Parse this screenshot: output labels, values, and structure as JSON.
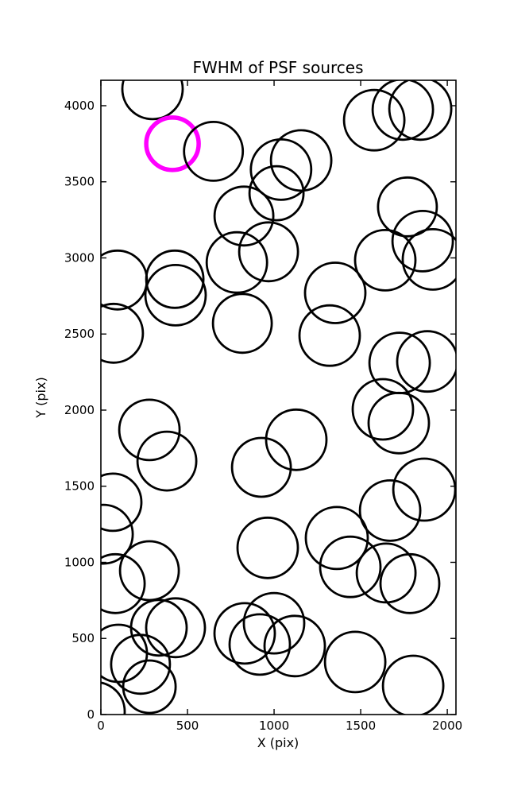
{
  "figure": {
    "background": "#ffffff"
  },
  "chart_data": {
    "type": "scatter",
    "title": "FWHM of PSF sources",
    "xlabel": "X (pix)",
    "ylabel": "Y (pix)",
    "xlim": [
      0,
      2050
    ],
    "ylim": [
      0,
      4167
    ],
    "xticks": [
      0,
      500,
      1000,
      1500,
      2000
    ],
    "yticks": [
      0,
      500,
      1000,
      1500,
      2000,
      2500,
      3000,
      3500,
      4000
    ],
    "grid": false,
    "legend": "none",
    "marker_style": "open-circle",
    "source_color": "#000000",
    "highlight_color": "#ff00ff",
    "columns": [
      "x_pix",
      "y_pix",
      "radius_screen_px",
      "color_flag"
    ],
    "circles": [
      [
        298,
        4110,
        38
      ],
      [
        413,
        3750,
        33,
        "highlight"
      ],
      [
        650,
        3700,
        37
      ],
      [
        1040,
        3580,
        38
      ],
      [
        1156,
        3640,
        38
      ],
      [
        1014,
        3425,
        34
      ],
      [
        826,
        3275,
        37
      ],
      [
        1578,
        3905,
        38
      ],
      [
        1743,
        3975,
        38
      ],
      [
        1844,
        3980,
        39
      ],
      [
        785,
        2970,
        38
      ],
      [
        968,
        3040,
        37
      ],
      [
        96,
        2855,
        37
      ],
      [
        427,
        2860,
        36
      ],
      [
        431,
        2755,
        38
      ],
      [
        1642,
        2985,
        38
      ],
      [
        1770,
        3335,
        37
      ],
      [
        1858,
        3110,
        38
      ],
      [
        1917,
        2990,
        38
      ],
      [
        1353,
        2770,
        38
      ],
      [
        73,
        2505,
        37
      ],
      [
        817,
        2570,
        37
      ],
      [
        1321,
        2490,
        38
      ],
      [
        1725,
        2310,
        38
      ],
      [
        1885,
        2320,
        38
      ],
      [
        1628,
        2005,
        38
      ],
      [
        1720,
        1915,
        38
      ],
      [
        280,
        1870,
        38
      ],
      [
        381,
        1665,
        37
      ],
      [
        1128,
        1805,
        38
      ],
      [
        927,
        1624,
        37
      ],
      [
        69,
        1395,
        36
      ],
      [
        14,
        1185,
        37
      ],
      [
        963,
        1095,
        38
      ],
      [
        1362,
        1160,
        39
      ],
      [
        1670,
        1340,
        38
      ],
      [
        1867,
        1478,
        39
      ],
      [
        280,
        945,
        37
      ],
      [
        83,
        860,
        37
      ],
      [
        1440,
        970,
        38
      ],
      [
        1647,
        930,
        37
      ],
      [
        1784,
        860,
        37
      ],
      [
        101,
        402,
        36
      ],
      [
        229,
        330,
        37
      ],
      [
        335,
        570,
        35
      ],
      [
        431,
        570,
        37
      ],
      [
        830,
        533,
        38
      ],
      [
        1000,
        600,
        38
      ],
      [
        917,
        460,
        38
      ],
      [
        1119,
        450,
        38
      ],
      [
        1468,
        345,
        38
      ],
      [
        1803,
        188,
        38
      ],
      [
        280,
        183,
        33
      ],
      [
        -32,
        20,
        37
      ]
    ]
  }
}
